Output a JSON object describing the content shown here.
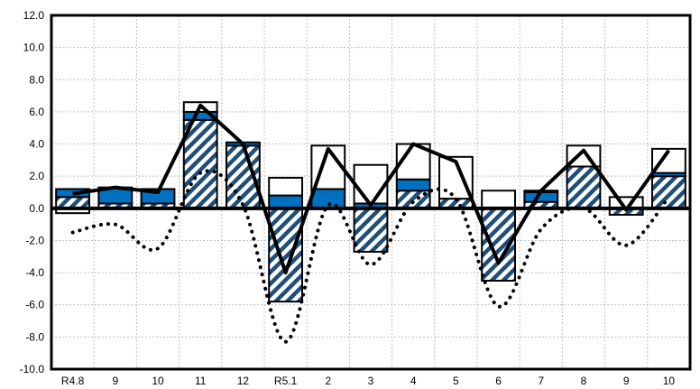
{
  "chart_data": {
    "type": "bar",
    "title": "",
    "xlabel": "",
    "ylabel": "",
    "ylim": [
      -10,
      12
    ],
    "yticks": [
      "12.0",
      "10.0",
      "8.0",
      "6.0",
      "4.0",
      "2.0",
      "0.0",
      "-2.0",
      "-4.0",
      "-6.0",
      "-8.0",
      "-10.0"
    ],
    "categories": [
      "R4.8",
      "9",
      "10",
      "11",
      "12",
      "R5.1",
      "2",
      "3",
      "4",
      "5",
      "6",
      "7",
      "8",
      "9",
      "10"
    ],
    "grid": true,
    "legend": "none",
    "series": [
      {
        "style": "hatched-stacked-bar",
        "color": "#1f4e79",
        "values": [
          0.7,
          0.3,
          0.3,
          5.5,
          3.9,
          -5.8,
          0.0,
          -2.7,
          1.1,
          0.6,
          -4.5,
          0.4,
          2.6,
          -0.4,
          2.0
        ]
      },
      {
        "style": "blue-stacked-bar",
        "color": "#0070c0",
        "values": [
          0.5,
          1.0,
          0.9,
          0.5,
          0.2,
          0.8,
          1.2,
          0.3,
          0.7,
          0.0,
          0.0,
          0.6,
          0.0,
          0.0,
          0.2
        ]
      },
      {
        "style": "white-stacked-bar",
        "color": "#ffffff",
        "values": [
          -0.3,
          0.0,
          0.0,
          0.6,
          0.0,
          1.1,
          2.7,
          2.4,
          2.2,
          2.6,
          1.1,
          0.1,
          1.3,
          0.7,
          1.5
        ]
      },
      {
        "style": "solid-line",
        "color": "#000000",
        "values": [
          0.9,
          1.3,
          1.0,
          6.4,
          4.0,
          -4.0,
          3.7,
          0.2,
          4.0,
          2.9,
          -3.4,
          1.1,
          3.6,
          -0.1,
          3.6
        ]
      },
      {
        "style": "dotted-line",
        "color": "#000000",
        "values": [
          -1.5,
          -1.0,
          -2.5,
          2.2,
          0.2,
          -8.3,
          0.2,
          -3.5,
          0.4,
          0.6,
          -6.1,
          -1.3,
          0.0,
          -2.3,
          0.7
        ]
      }
    ]
  },
  "colors": {
    "hatch_dark": "#1f4e79",
    "bar_blue": "#0070c0",
    "outline": "#000000",
    "background": "#ffffff",
    "grid": "#bfbfbf"
  }
}
